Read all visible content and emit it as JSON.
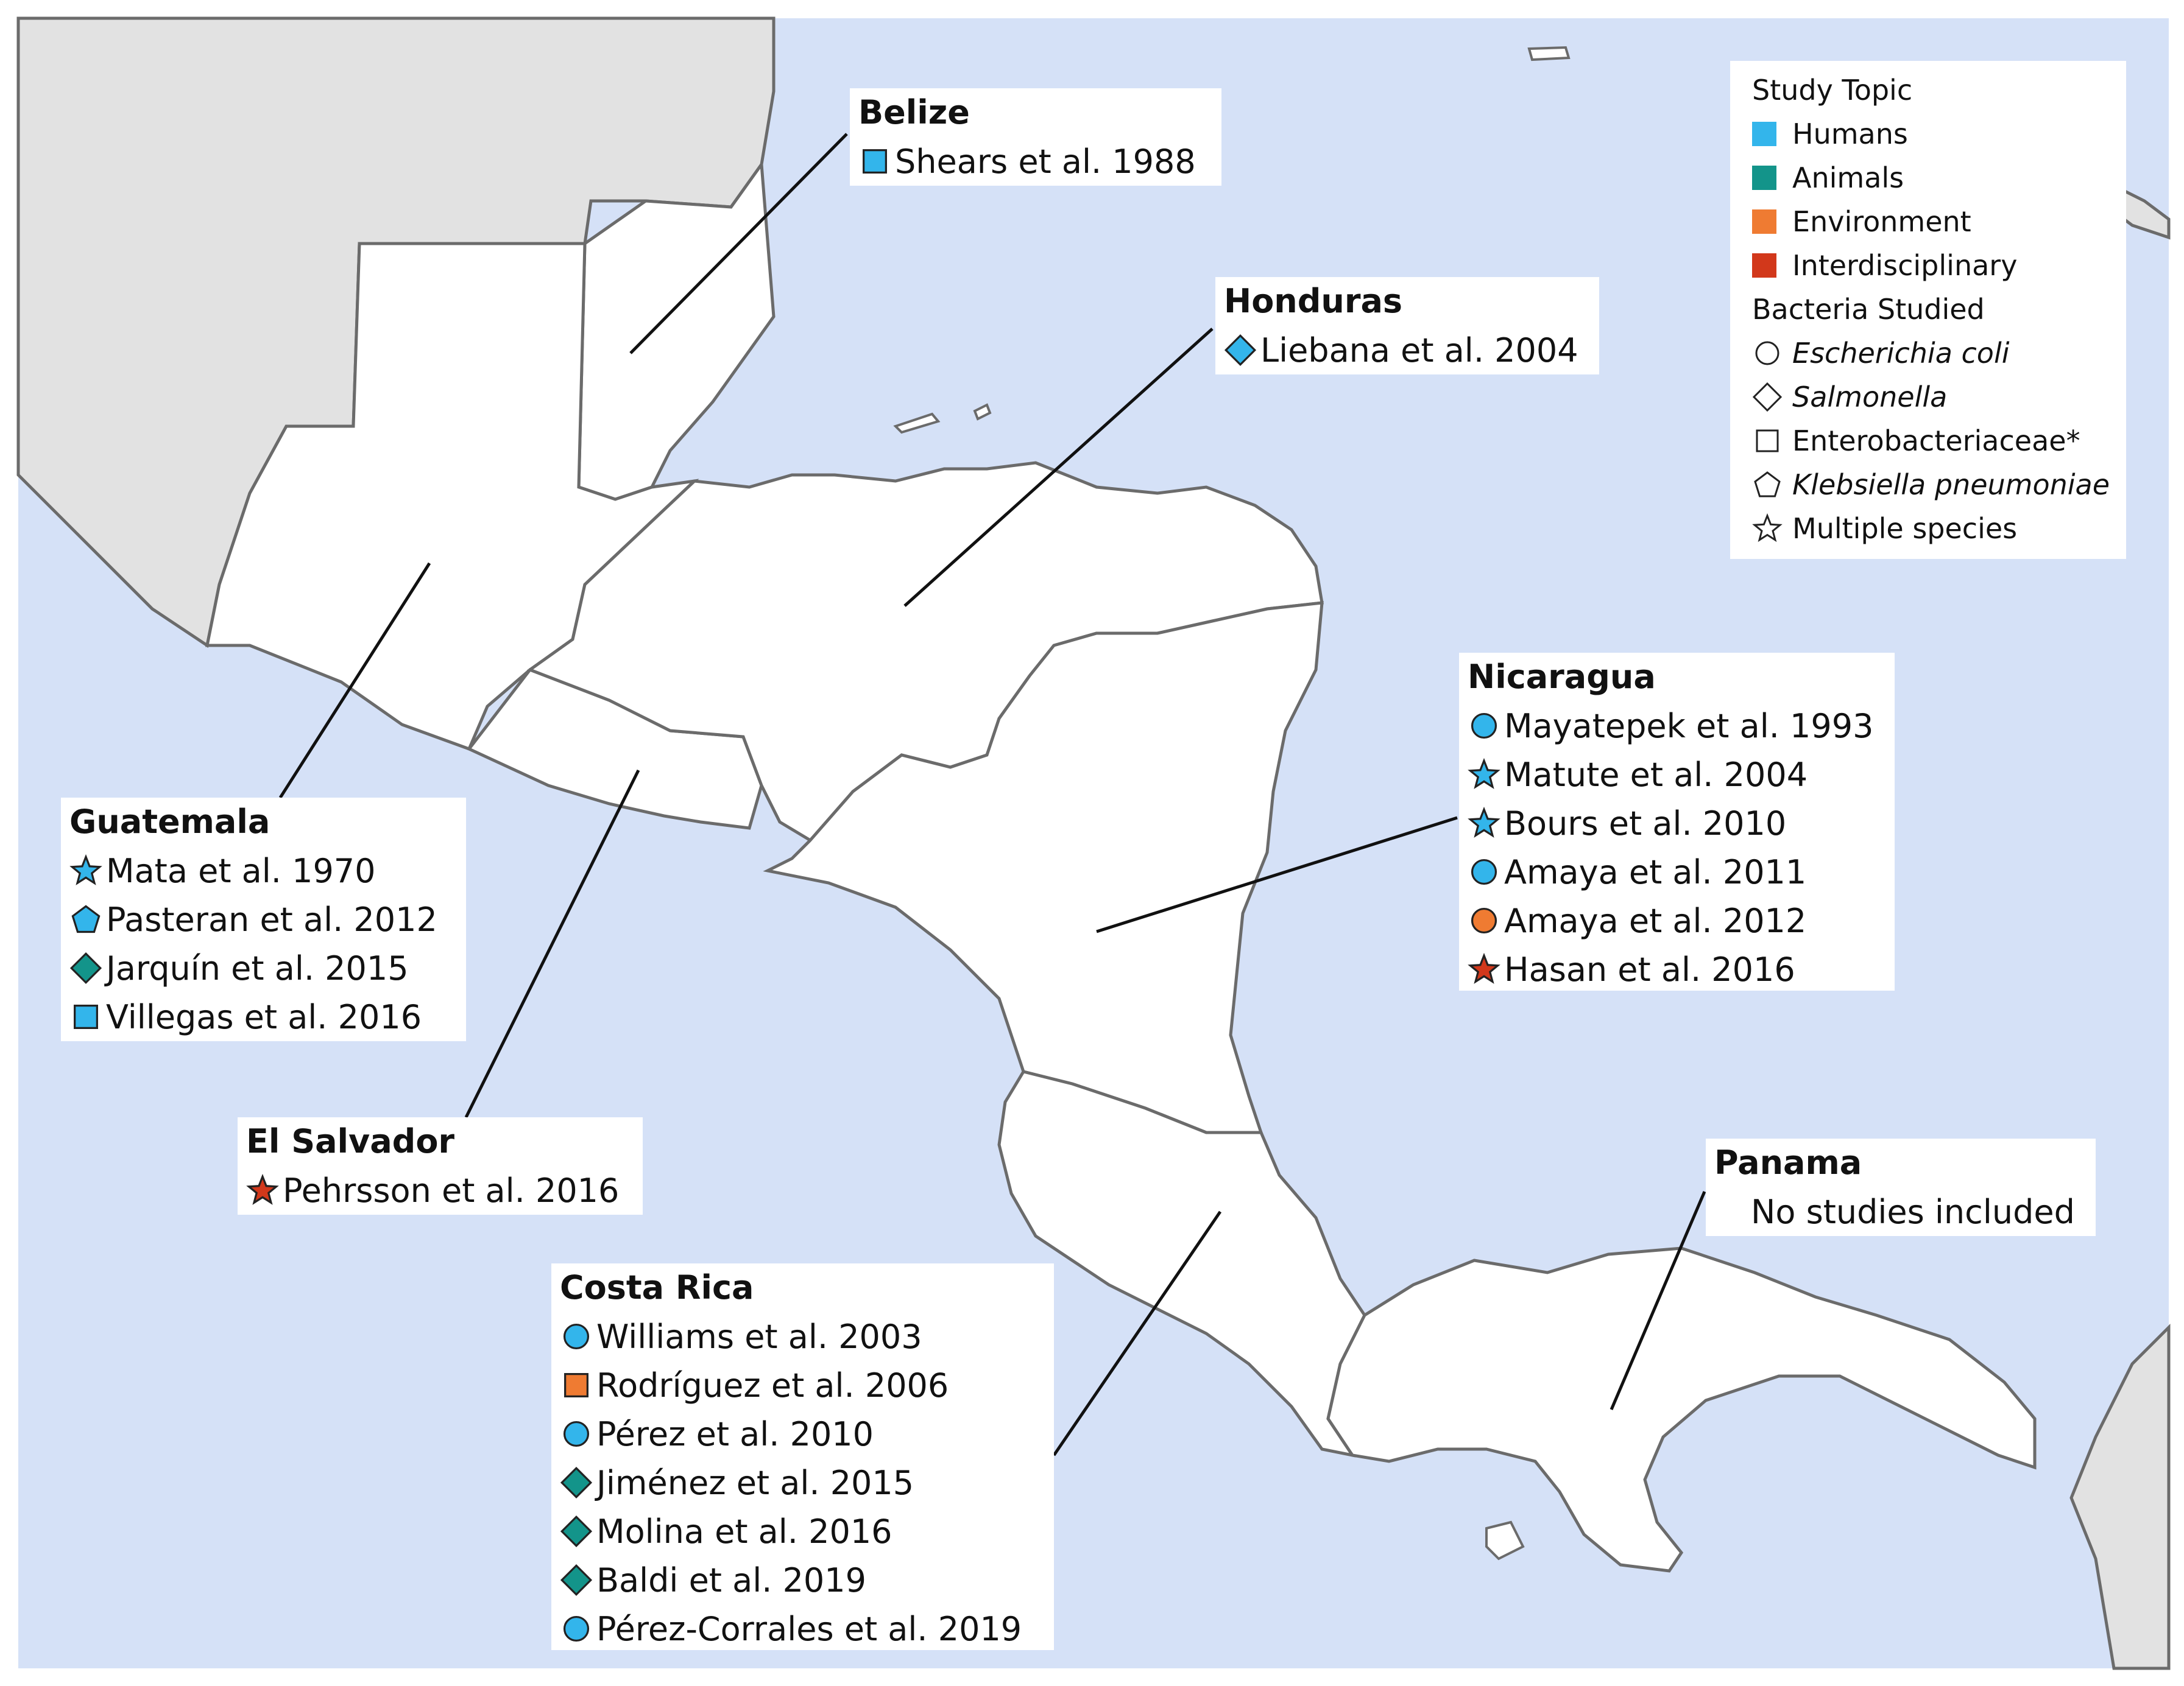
{
  "colors": {
    "sea": "#d5e1f7",
    "other_land": "#e2e2e2",
    "study_land": "#ffffff",
    "border": "#6b6b6b",
    "humans": "#33b5eb",
    "animals": "#13948a",
    "environment": "#ef7b32",
    "interdisciplinary": "#d2381b"
  },
  "legend": {
    "topic_heading": "Study Topic",
    "topics": [
      {
        "label": "Humans",
        "color": "#33b5eb"
      },
      {
        "label": "Animals",
        "color": "#13948a"
      },
      {
        "label": "Environment",
        "color": "#ef7b32"
      },
      {
        "label": "Interdisciplinary",
        "color": "#d2381b"
      }
    ],
    "bacteria_heading": "Bacteria Studied",
    "bacteria": [
      {
        "label": "Escherichia coli",
        "shape": "circle",
        "italic": true
      },
      {
        "label": "Salmonella",
        "shape": "diamond",
        "italic": true
      },
      {
        "label": "Enterobacteriaceae*",
        "shape": "square",
        "italic": false
      },
      {
        "label": "Klebsiella pneumoniae",
        "shape": "pentagon",
        "italic": true
      },
      {
        "label": "Multiple species",
        "shape": "star",
        "italic": false
      }
    ]
  },
  "countries": {
    "belize": {
      "name": "Belize",
      "studies": [
        {
          "label": "Shears et al. 1988",
          "shape": "square",
          "topic": "humans"
        }
      ]
    },
    "honduras": {
      "name": "Honduras",
      "studies": [
        {
          "label": "Liebana et al. 2004",
          "shape": "diamond",
          "topic": "humans"
        }
      ]
    },
    "guatemala": {
      "name": "Guatemala",
      "studies": [
        {
          "label": "Mata et al. 1970",
          "shape": "star",
          "topic": "humans"
        },
        {
          "label": "Pasteran et al. 2012",
          "shape": "pentagon",
          "topic": "humans"
        },
        {
          "label": "Jarquín et al. 2015",
          "shape": "diamond",
          "topic": "animals"
        },
        {
          "label": "Villegas et al. 2016",
          "shape": "square",
          "topic": "humans"
        }
      ]
    },
    "el_salvador": {
      "name": "El Salvador",
      "studies": [
        {
          "label": "Pehrsson et al. 2016",
          "shape": "star",
          "topic": "interdisciplinary"
        }
      ]
    },
    "nicaragua": {
      "name": "Nicaragua",
      "studies": [
        {
          "label": "Mayatepek et al. 1993",
          "shape": "circle",
          "topic": "humans"
        },
        {
          "label": "Matute et al. 2004",
          "shape": "star",
          "topic": "humans"
        },
        {
          "label": "Bours et al. 2010",
          "shape": "star",
          "topic": "humans"
        },
        {
          "label": "Amaya et al. 2011",
          "shape": "circle",
          "topic": "humans"
        },
        {
          "label": "Amaya et al. 2012",
          "shape": "circle",
          "topic": "environment"
        },
        {
          "label": "Hasan et al. 2016",
          "shape": "star",
          "topic": "interdisciplinary"
        }
      ]
    },
    "costa_rica": {
      "name": "Costa Rica",
      "studies": [
        {
          "label": "Williams et al. 2003",
          "shape": "circle",
          "topic": "humans"
        },
        {
          "label": "Rodríguez et al. 2006",
          "shape": "square",
          "topic": "environment"
        },
        {
          "label": "Pérez et al. 2010",
          "shape": "circle",
          "topic": "humans"
        },
        {
          "label": "Jiménez et al. 2015",
          "shape": "diamond",
          "topic": "animals"
        },
        {
          "label": "Molina et al. 2016",
          "shape": "diamond",
          "topic": "animals"
        },
        {
          "label": "Baldi et al. 2019",
          "shape": "diamond",
          "topic": "animals"
        },
        {
          "label": "Pérez-Corrales et al. 2019",
          "shape": "circle",
          "topic": "humans"
        }
      ]
    },
    "panama": {
      "name": "Panama",
      "note": "No studies included"
    }
  }
}
